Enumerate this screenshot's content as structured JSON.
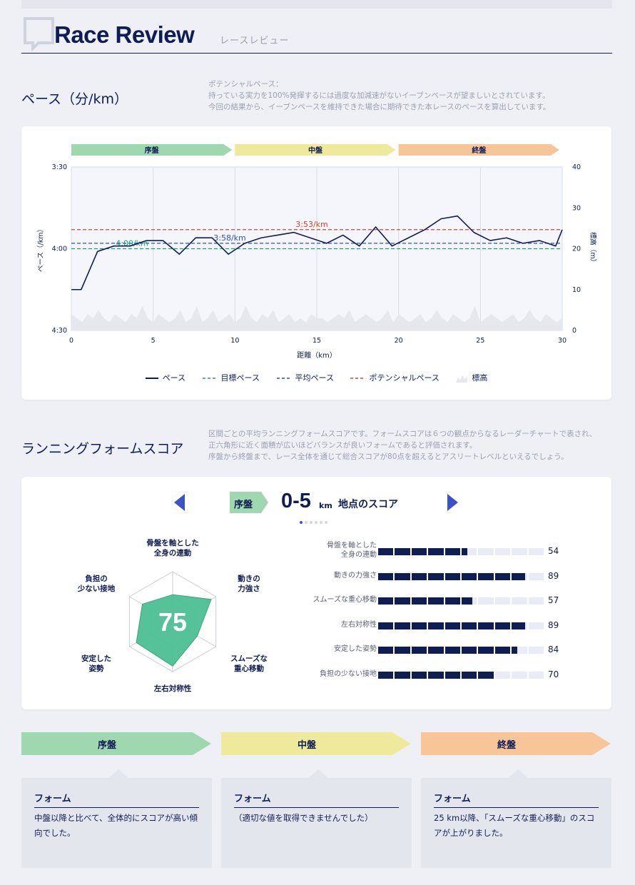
{
  "header": {
    "title": "Race Review",
    "subtitle": "レースレビュー"
  },
  "pace_section": {
    "title": "ペース（分/km）",
    "description": [
      "ポテンシャルペース：",
      "持っている実力を100%発揮するには過度な加減速がないイーブンペースが望ましいとされています。",
      "今回の結果から、イーブンペースを維持できた場合に期待できた本レースのペースを算出しています。"
    ]
  },
  "chart_data": {
    "type": "line",
    "phases": [
      "序盤",
      "中盤",
      "終盤"
    ],
    "phase_colors": [
      "#9fd8ae",
      "#efe99b",
      "#f7c597"
    ],
    "x": [
      0,
      0.6,
      1.6,
      2.6,
      3.6,
      4.6,
      5.6,
      6.6,
      7.6,
      8.6,
      9.6,
      10.6,
      11.6,
      12.6,
      13.6,
      14.6,
      15.6,
      16.6,
      17.6,
      18.6,
      19.6,
      20.6,
      21.6,
      22.6,
      23.6,
      24.6,
      25.6,
      26.6,
      27.6,
      28.6,
      29.6,
      30
    ],
    "pace_values": [
      "4:15",
      "4:15",
      "4:01",
      "3:59",
      "3:59",
      "3:57",
      "3:57",
      "4:02",
      "3:56",
      "3:56",
      "4:02",
      "3:58",
      "3:56",
      "3:55",
      "3:54",
      "3:56",
      "3:58",
      "3:55",
      "3:59",
      "3:52",
      "3:59",
      "3:56",
      "3:53",
      "3:49",
      "3:48",
      "3:54",
      "3:57",
      "3:56",
      "3:58",
      "3:57",
      "3:59",
      "3:53"
    ],
    "pace_seconds": [
      255,
      255,
      241,
      239,
      239,
      237,
      237,
      242,
      236,
      236,
      242,
      238,
      236,
      235,
      234,
      236,
      238,
      235,
      239,
      232,
      239,
      236,
      233,
      229,
      228,
      234,
      237,
      236,
      238,
      237,
      239,
      233
    ],
    "elevation_m": [
      4,
      3,
      2,
      4,
      3,
      5,
      3,
      2,
      4,
      3,
      2,
      4,
      3,
      6,
      3,
      2,
      4,
      3,
      2,
      3,
      5,
      2,
      3,
      6,
      2,
      3,
      5,
      2,
      3,
      4,
      2,
      3,
      6,
      3,
      2,
      4,
      3,
      5,
      2,
      3,
      4,
      2,
      3,
      2,
      4,
      3,
      3,
      2,
      3,
      4,
      3,
      5,
      2,
      3,
      4,
      3,
      2,
      3,
      5,
      2,
      4,
      3,
      2,
      3,
      4,
      2,
      3,
      5,
      3,
      2,
      4,
      3,
      2,
      3,
      6,
      2,
      3,
      4,
      3,
      2,
      3,
      4,
      2,
      3,
      5,
      3,
      2,
      4,
      3,
      2,
      3
    ],
    "target_pace": "4:00/km",
    "average_pace": "3:58/km",
    "potential_pace": "3:53/km",
    "target_seconds": 240,
    "average_seconds": 238,
    "potential_seconds": 233,
    "xlabel": "距離（km）",
    "ylabel_left": "ペース（/km）",
    "ylabel_right": "標高（m）",
    "x_ticks": [
      0,
      5,
      10,
      15,
      20,
      25,
      30
    ],
    "y_left_ticks": [
      "3:30",
      "4:00",
      "4:30"
    ],
    "y_left_range_seconds": [
      210,
      270
    ],
    "y_right_ticks": [
      40,
      30,
      20,
      10,
      0
    ],
    "y_right_range": [
      0,
      40
    ],
    "grid": true,
    "legend_position": "bottom",
    "legend": [
      {
        "name": "ペース",
        "color": "#0f1d55",
        "style": "solid"
      },
      {
        "name": "目標ペース",
        "color": "#1aa56e",
        "style": "dashed"
      },
      {
        "name": "平均ペース",
        "color": "#2d4ec5",
        "style": "dashed"
      },
      {
        "name": "ポテンシャルペース",
        "color": "#e0432b",
        "style": "dashed"
      },
      {
        "name": "標高",
        "color": "#e6e8ee",
        "style": "area"
      }
    ]
  },
  "form_section": {
    "title": "ランニングフォームスコア",
    "description": [
      "区間ごとの平均ランニングフォームスコアです。フォームスコアは６つの観点からなるレーダーチャートで表され、",
      "正六角形に近く面積が広いほどバランスが良いフォームであると評価されます。",
      "序盤から終盤まで、レース全体を通じて総合スコアが80点を超えるとアスリートレベルといえるでしょう。"
    ]
  },
  "score_card": {
    "phase": "序盤",
    "range": "0-5",
    "unit": "km",
    "suffix": "地点のスコア",
    "page_dots": 6,
    "active_dot": 0,
    "total_score": "75",
    "radar_labels": [
      [
        "骨盤を軸とした",
        "全身の連動"
      ],
      [
        "動きの",
        "力強さ"
      ],
      [
        "スムーズな",
        "重心移動"
      ],
      [
        "左右対称性"
      ],
      [
        "安定した",
        "姿勢"
      ],
      [
        "負担の",
        "少ない接地"
      ]
    ],
    "scores": [
      {
        "label": [
          "骨盤を軸とした",
          "全身の連動"
        ],
        "value": 54
      },
      {
        "label": [
          "動きの力強さ"
        ],
        "value": 89
      },
      {
        "label": [
          "スムーズな重心移動"
        ],
        "value": 57
      },
      {
        "label": [
          "左右対称性"
        ],
        "value": 89
      },
      {
        "label": [
          "安定した姿勢"
        ],
        "value": 84
      },
      {
        "label": [
          "負担の少ない接地"
        ],
        "value": 70
      }
    ]
  },
  "comments": [
    {
      "phase": "序盤",
      "color": "#9fd8ae",
      "title": "フォーム",
      "text": "中盤以降と比べて、全体的にスコアが高い傾向でした。"
    },
    {
      "phase": "中盤",
      "color": "#efe99b",
      "title": "フォーム",
      "text": "（適切な値を取得できませんでした）"
    },
    {
      "phase": "終盤",
      "color": "#f7c597",
      "title": "フォーム",
      "text": "25 km以降、「スムーズな重心移動」のスコアが上がりました。"
    }
  ]
}
